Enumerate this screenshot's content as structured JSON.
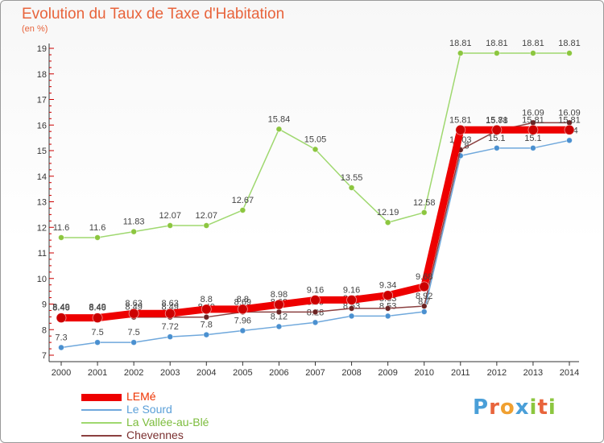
{
  "title": "Evolution du Taux de Taxe d'Habitation",
  "subtitle": "(en %)",
  "logo": {
    "letters": [
      "P",
      "r",
      "o",
      "x",
      "i",
      "t",
      "i"
    ],
    "colors": [
      "#4a9fd8",
      "#e8643c",
      "#f0a030",
      "#4a9fd8",
      "#8cc63f",
      "#e8643c",
      "#8cc63f"
    ]
  },
  "chart_data": {
    "type": "line",
    "x": [
      "2000",
      "2001",
      "2002",
      "2003",
      "2004",
      "2005",
      "2006",
      "2007",
      "2008",
      "2009",
      "2010",
      "2011",
      "2012",
      "2013",
      "2014"
    ],
    "y_ticks": [
      "7",
      "8",
      "9",
      "10",
      "11",
      "12",
      "13",
      "14",
      "15",
      "16",
      "17",
      "18",
      "19"
    ],
    "ylim": [
      7,
      19
    ],
    "grid": false,
    "legend_position": "bottom-left",
    "series": [
      {
        "name": "Le Sourd",
        "color": "#6fa8dc",
        "marker": "#4a90d0",
        "width": 1.5,
        "marker_r": 3.5,
        "values": [
          7.3,
          7.5,
          7.5,
          7.72,
          7.8,
          7.96,
          8.12,
          8.28,
          8.53,
          8.53,
          8.7,
          14.8,
          15.1,
          15.1,
          15.4
        ],
        "labels": [
          "7.3",
          "7.5",
          "7.5",
          "7.72",
          "7.8",
          "7.96",
          "8.12",
          "8.28",
          "8.53",
          "8.53",
          "8.7",
          "14.8",
          "15.1",
          "15.1",
          "15.4"
        ]
      },
      {
        "name": "La Vallée-au-Blé",
        "color": "#9fd86f",
        "marker": "#8cc63f",
        "width": 1.5,
        "marker_r": 3.5,
        "values": [
          11.6,
          11.6,
          11.83,
          12.07,
          12.07,
          12.67,
          15.84,
          15.05,
          13.55,
          12.19,
          12.58,
          18.81,
          18.81,
          18.81,
          18.81
        ],
        "labels": [
          "11.6",
          "11.6",
          "11.83",
          "12.07",
          "12.07",
          "12.67",
          "15.84",
          "15.05",
          "13.55",
          "12.19",
          "12.58",
          "18.81",
          "18.81",
          "18.81",
          "18.81"
        ]
      },
      {
        "name": "Chevennes",
        "color": "#8b4040",
        "marker": "#6b2222",
        "width": 1.5,
        "marker_r": 3.5,
        "values": [
          8.49,
          8.49,
          8.49,
          8.49,
          8.49,
          8.69,
          8.69,
          8.69,
          8.83,
          8.83,
          8.92,
          15.03,
          15.78,
          16.09,
          16.09
        ],
        "labels": [
          "8.49",
          "8.49",
          "8.49",
          "8.49",
          "8.49",
          "8.69",
          "8.69",
          "8.69",
          "8.83",
          "8.83",
          "8.92",
          "15.03",
          "15.78",
          "16.09",
          "16.09"
        ]
      },
      {
        "name": "LEMé",
        "color": "#ee0000",
        "marker": "#cc0000",
        "width": 9,
        "marker_r": 6,
        "values": [
          8.46,
          8.46,
          8.63,
          8.63,
          8.8,
          8.8,
          8.98,
          9.16,
          9.16,
          9.34,
          9.68,
          15.81,
          15.81,
          15.81,
          15.81
        ],
        "labels": [
          "8.46",
          "8.46",
          "8.63",
          "8.63",
          "8.8",
          "8.8",
          "8.98",
          "9.16",
          "9.16",
          "9.34",
          "9.68",
          "15.81",
          "15.81",
          "15.81",
          "15.81"
        ]
      }
    ],
    "legend": [
      {
        "name": "LEMé",
        "color": "#ee0000",
        "text_color": "#ee3300",
        "width": 9
      },
      {
        "name": "Le Sourd",
        "color": "#6fa8dc",
        "text_color": "#5a9fd8",
        "width": 2
      },
      {
        "name": "La Vallée-au-Blé",
        "color": "#9fd86f",
        "text_color": "#7cbc3c",
        "width": 2
      },
      {
        "name": "Chevennes",
        "color": "#8b4040",
        "text_color": "#7a3030",
        "width": 2
      }
    ]
  }
}
